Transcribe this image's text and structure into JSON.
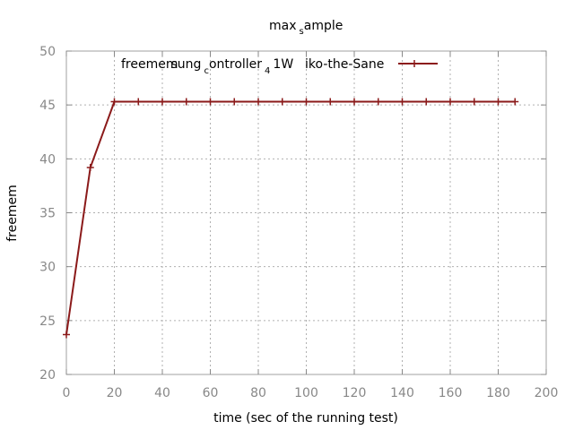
{
  "chart_data": {
    "type": "line",
    "title": "max",
    "title_sub": "s",
    "title_tail": "ample",
    "xlabel": "time (sec of the running test)",
    "ylabel": "freemem",
    "xlim": [
      0,
      200
    ],
    "ylim": [
      20,
      50
    ],
    "xticks": [
      0,
      20,
      40,
      60,
      80,
      100,
      120,
      140,
      160,
      180,
      200
    ],
    "yticks": [
      20,
      25,
      30,
      35,
      40,
      45,
      50
    ],
    "grid": true,
    "legend_position": "top-right",
    "colors": {
      "series": "#8b1a1a",
      "grid": "#b0b0b0",
      "tick": "#888888"
    },
    "series": [
      {
        "name_parts": {
          "a": "freemem",
          "b": "sung",
          "c_sub": "c",
          "d": "ontroller",
          "e_sub": "4",
          "f": "1W",
          "g": "iko-the-Sane"
        },
        "marker": "plus",
        "x": [
          0,
          10,
          20,
          30,
          40,
          50,
          60,
          70,
          80,
          90,
          100,
          110,
          120,
          130,
          140,
          150,
          160,
          170,
          180,
          187
        ],
        "y": [
          23.7,
          39.2,
          45.3,
          45.3,
          45.3,
          45.3,
          45.3,
          45.3,
          45.3,
          45.3,
          45.3,
          45.3,
          45.3,
          45.3,
          45.3,
          45.3,
          45.3,
          45.3,
          45.3,
          45.3
        ]
      }
    ]
  }
}
